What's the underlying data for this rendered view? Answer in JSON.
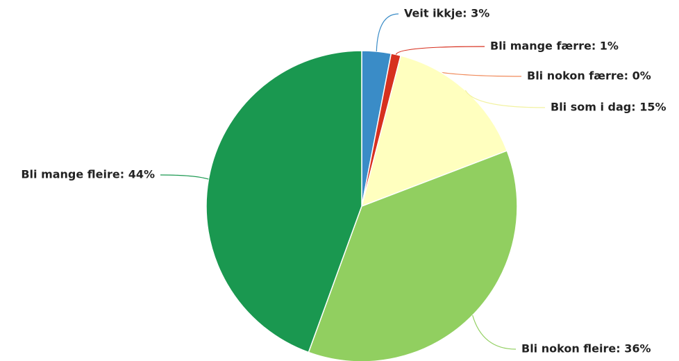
{
  "chart_data": {
    "type": "pie",
    "value_labels": [
      "Veit ikkje: 3%",
      "Bli mange færre: 1%",
      "Bli nokon færre: 0%",
      "Bli som i dag: 15%",
      "Bli nokon fleire: 36%",
      "Bli mange fleire: 44%"
    ],
    "values": [
      3,
      1,
      0,
      15,
      36,
      44
    ],
    "colors": [
      "#3a8cc7",
      "#d7301f",
      "#f08a5a",
      "#ffffbf",
      "#91cf60",
      "#1a9850"
    ]
  }
}
